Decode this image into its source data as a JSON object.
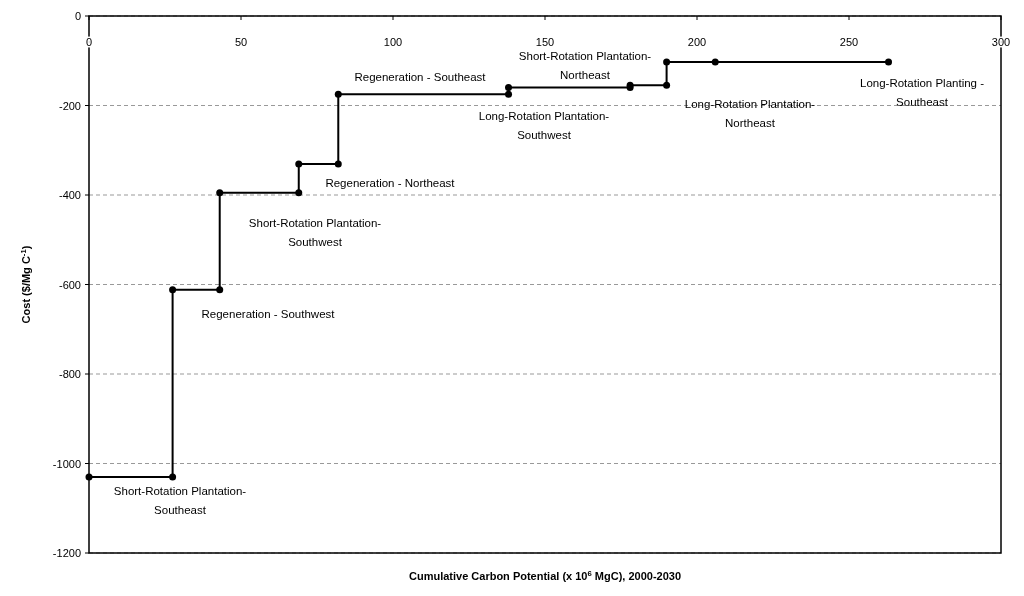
{
  "chart_data": {
    "type": "line",
    "xlabel": "Cumulative Carbon Potential (x 10$^{6}$ MgC), 2000-2030",
    "ylabel": "Cost ($/Mg C$^{-1}$)",
    "xlim": [
      0,
      300
    ],
    "xticks": [
      0,
      50,
      100,
      150,
      200,
      250,
      300
    ],
    "ylim": [
      -1200,
      0
    ],
    "yticks": [
      -1200,
      -1000,
      -800,
      -600,
      -400,
      -200,
      0
    ],
    "grid": "y",
    "marker": "circle",
    "line_style": "solid",
    "series": [
      {
        "color": "#000000",
        "x": [
          0,
          27.5,
          27.5,
          43,
          43,
          69,
          69,
          82,
          82,
          138,
          138,
          178,
          178,
          190,
          190,
          206,
          263
        ],
        "values": [
          -1030,
          -1030,
          -612,
          -612,
          -395,
          -395,
          -331,
          -331,
          -175,
          -175,
          -160,
          -160,
          -155,
          -155,
          -103,
          -103,
          -103
        ]
      }
    ],
    "annotations": [
      "Short-Rotation Plantation-\nSoutheast",
      "Regeneration - Southwest",
      "Short-Rotation Plantation-\nSouthwest",
      "Regeneration - Northeast",
      "Regeneration - Southeast",
      "Long-Rotation Plantation-\nSouthwest",
      "Short-Rotation Plantation-\nNortheast",
      "Long-Rotation Plantation-\nNortheast",
      "Long-Rotation Planting -\nSoutheast"
    ]
  }
}
